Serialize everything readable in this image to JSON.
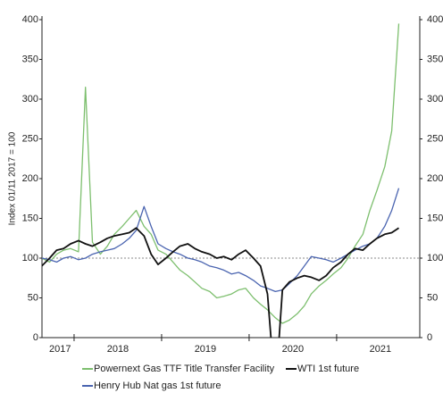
{
  "chart_data": {
    "type": "line",
    "ylabel": "Index 01/11 2017 = 100",
    "x": [
      2017.63,
      2017.72,
      2017.8,
      2017.88,
      2017.96,
      2018.05,
      2018.13,
      2018.21,
      2018.3,
      2018.38,
      2018.46,
      2018.55,
      2018.63,
      2018.71,
      2018.8,
      2018.88,
      2018.96,
      2019.05,
      2019.13,
      2019.21,
      2019.3,
      2019.38,
      2019.46,
      2019.55,
      2019.63,
      2019.71,
      2019.8,
      2019.88,
      2019.96,
      2020.05,
      2020.13,
      2020.21,
      2020.3,
      2020.38,
      2020.46,
      2020.55,
      2020.63,
      2020.71,
      2020.8,
      2020.88,
      2020.96,
      2021.05,
      2021.13,
      2021.21,
      2021.3,
      2021.38,
      2021.46,
      2021.55,
      2021.63,
      2021.71
    ],
    "series": [
      {
        "name": "Powernext Gas TTF Title Transfer Facility",
        "color": "#7dbf6e",
        "values": [
          100,
          95,
          105,
          110,
          112,
          108,
          315,
          120,
          105,
          115,
          130,
          140,
          150,
          160,
          140,
          130,
          110,
          105,
          95,
          85,
          78,
          70,
          62,
          58,
          50,
          52,
          55,
          60,
          62,
          50,
          42,
          35,
          25,
          18,
          22,
          30,
          40,
          55,
          65,
          72,
          80,
          88,
          100,
          115,
          130,
          160,
          185,
          215,
          260,
          395
        ]
      },
      {
        "name": "WTI 1st future",
        "color": "#111111",
        "values": [
          90,
          100,
          110,
          112,
          118,
          122,
          118,
          115,
          120,
          125,
          128,
          130,
          132,
          138,
          128,
          105,
          92,
          100,
          108,
          115,
          118,
          112,
          108,
          105,
          100,
          102,
          98,
          105,
          110,
          100,
          90,
          55,
          -70,
          60,
          70,
          75,
          78,
          76,
          72,
          78,
          88,
          95,
          105,
          112,
          110,
          118,
          125,
          130,
          132,
          138
        ]
      },
      {
        "name": "Henry Hub Nat gas 1st future",
        "color": "#4a64b0",
        "values": [
          100,
          98,
          95,
          100,
          102,
          98,
          100,
          105,
          108,
          110,
          112,
          118,
          125,
          135,
          165,
          140,
          118,
          112,
          108,
          105,
          100,
          98,
          95,
          90,
          88,
          85,
          80,
          82,
          78,
          72,
          65,
          62,
          58,
          60,
          68,
          78,
          90,
          102,
          100,
          98,
          95,
          100,
          105,
          110,
          115,
          118,
          125,
          140,
          160,
          188
        ]
      }
    ],
    "xlim": [
      2017.633,
      2021.95
    ],
    "xticks": [
      2018,
      2019,
      2020,
      2021
    ],
    "xlabels": [
      {
        "value": 2017.84,
        "label": "2017"
      },
      {
        "value": 2018.5,
        "label": "2018"
      },
      {
        "value": 2019.5,
        "label": "2019"
      },
      {
        "value": 2020.5,
        "label": "2020"
      },
      {
        "value": 2021.5,
        "label": "2021"
      }
    ],
    "ylim": [
      0,
      400
    ],
    "yticks": [
      0,
      50,
      100,
      150,
      200,
      250,
      300,
      350,
      400
    ],
    "right_axis_ticks": true,
    "reference_line": 100,
    "legend": "bottom"
  }
}
